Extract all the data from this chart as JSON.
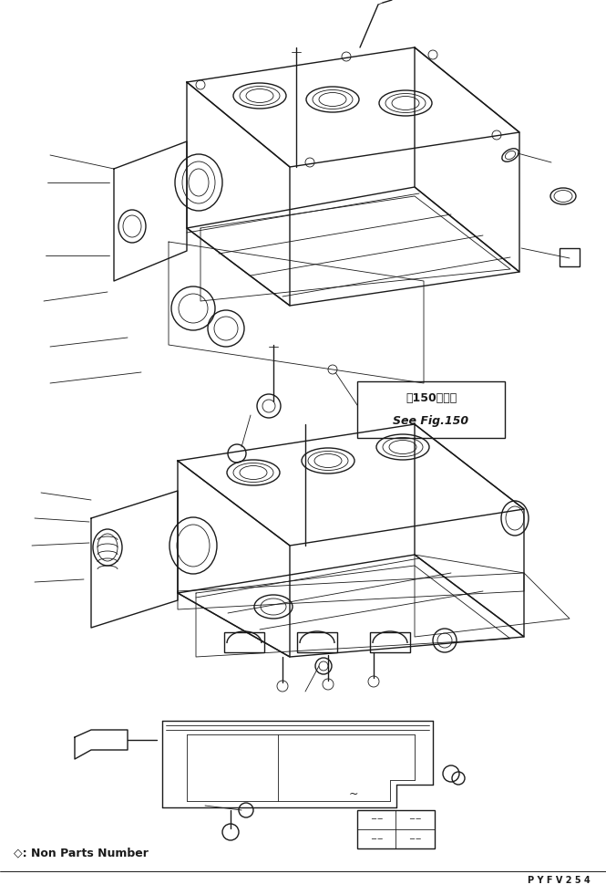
{
  "title": "",
  "background_color": "#ffffff",
  "line_color": "#1a1a1a",
  "fig_width": 6.65,
  "fig_height": 9.81,
  "dpi": 100,
  "see_fig_text_jp": "第150図参照",
  "see_fig_text_en": "See Fig.150",
  "non_parts_label": "◇: Non Parts Number",
  "part_number": "P Y F V 2 5 4"
}
